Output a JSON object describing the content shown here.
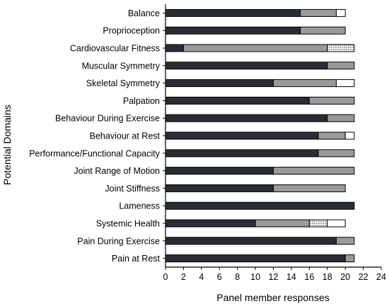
{
  "chart_data": {
    "type": "bar",
    "orientation": "horizontal",
    "stacked": true,
    "title": "",
    "xlabel": "Panel member responses",
    "ylabel": "Potential Domains",
    "xlim": [
      0,
      24
    ],
    "xticks": [
      0,
      2,
      4,
      6,
      8,
      10,
      12,
      14,
      16,
      18,
      20,
      22,
      24
    ],
    "grid": false,
    "legend": "none",
    "categories": [
      "Balance",
      "Proprioception",
      "Cardiovascular Fitness",
      "Muscular Symmetry",
      "Skeletal Symmetry",
      "Palpation",
      "Behaviour During Exercise",
      "Behaviour at Rest",
      "Performance/Functional Capacity",
      "Joint Range of Motion",
      "Joint Stiffness",
      "Lameness",
      "Systemic Health",
      "Pain During Exercise",
      "Pain at Rest"
    ],
    "series": [
      {
        "fill": "dark",
        "color": "#2a2d33",
        "values": [
          15,
          15,
          2,
          18,
          12,
          16,
          18,
          17,
          17,
          12,
          12,
          21,
          10,
          19,
          20
        ]
      },
      {
        "fill": "grey",
        "color": "#9a9a9a",
        "values": [
          4,
          5,
          16,
          3,
          7,
          5,
          3,
          3,
          4,
          9,
          8,
          0,
          6,
          2,
          1
        ]
      },
      {
        "fill": "dotted",
        "color": "#e6e6e6",
        "values": [
          0,
          0,
          3,
          0,
          0,
          0,
          0,
          0,
          0,
          0,
          0,
          0,
          2,
          0,
          0
        ]
      },
      {
        "fill": "white",
        "color": "#ffffff",
        "values": [
          1,
          0,
          0,
          0,
          2,
          0,
          0,
          1,
          0,
          0,
          0,
          0,
          2,
          0,
          0
        ]
      }
    ]
  }
}
